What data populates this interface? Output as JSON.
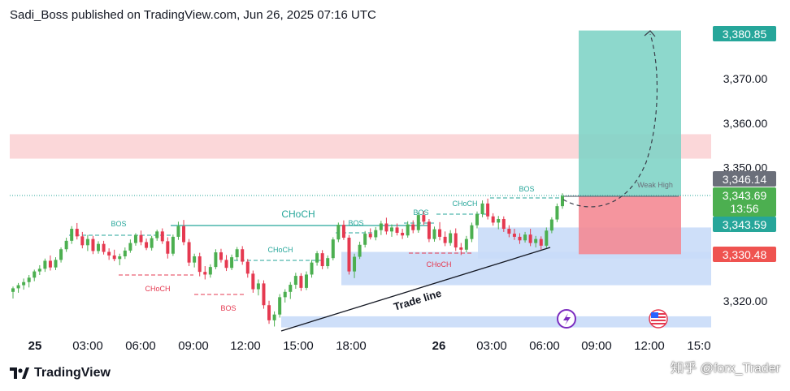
{
  "header": {
    "text": "Sadi_Boss published on TradingView.com, Jun 26, 2025 07:16 UTC"
  },
  "footer": {
    "brand": "TradingView"
  },
  "watermark": "知乎 @forx_Trader",
  "colors": {
    "up": "#26a69a",
    "down": "#ef5350",
    "up_candle": "#4caf50",
    "down_candle": "#e53950",
    "target_zone": "#81d4c6",
    "stop_zone": "#f48a94",
    "blue_zone": "#c9dcf8",
    "red_zone": "#fbd7d9",
    "label_target": "#26a69a",
    "label_stop": "#ef5350",
    "label_current": "#4caf50",
    "label_gray": "#6b6f7a"
  },
  "chart_data": {
    "type": "candlestick",
    "x_ticks": [
      "25",
      "03:00",
      "06:00",
      "09:00",
      "12:00",
      "15:00",
      "18:00",
      "26",
      "03:00",
      "06:00",
      "09:00",
      "12:00",
      "15:0"
    ],
    "y_ticks": [
      "3,370.00",
      "3,360.00",
      "3,350.00",
      "3,320.00"
    ],
    "ylim": [
      3313.5,
      3390.0
    ],
    "price_labels": [
      {
        "text": "3,380.85",
        "value": 3380.85,
        "color": "target"
      },
      {
        "text": "3,346.14",
        "value": 3346.14,
        "color": "gray"
      },
      {
        "text": "3,343.69",
        "sub": "13:56",
        "value": 3343.69,
        "color": "current"
      },
      {
        "text": "3,343.59",
        "value": 3343.59,
        "color": "target"
      },
      {
        "text": "3,330.48",
        "value": 3330.48,
        "color": "stop"
      }
    ],
    "annotations": [
      {
        "text": "BOS",
        "kind": "bull"
      },
      {
        "text": "CHoCH",
        "kind": "bear"
      },
      {
        "text": "BOS",
        "kind": "bear"
      },
      {
        "text": "CHoCH",
        "kind": "bull-large"
      },
      {
        "text": "CHoCH",
        "kind": "bull"
      },
      {
        "text": "BOS",
        "kind": "bull"
      },
      {
        "text": "BOS",
        "kind": "bull"
      },
      {
        "text": "CHoCH",
        "kind": "bull"
      },
      {
        "text": "CHoCH",
        "kind": "bear"
      },
      {
        "text": "BOS",
        "kind": "bull"
      },
      {
        "text": "Weak High",
        "kind": "gray"
      },
      {
        "text": "Trade line",
        "kind": "trend"
      }
    ],
    "position": {
      "entry": 3343.59,
      "target": 3380.85,
      "stop": 3330.48
    },
    "zones": [
      {
        "name": "supply",
        "from": 3352.0,
        "to": 3357.5
      },
      {
        "name": "demand-1",
        "from": 3329.5,
        "to": 3336.5
      },
      {
        "name": "demand-2",
        "from": 3323.5,
        "to": 3331.0
      },
      {
        "name": "demand-3",
        "from": 3314.0,
        "to": 3316.5
      }
    ],
    "candles": [
      [
        3322.0,
        3323.2,
        3320.5,
        3322.8
      ],
      [
        3322.8,
        3324.0,
        3321.8,
        3323.5
      ],
      [
        3323.5,
        3325.0,
        3322.5,
        3324.2
      ],
      [
        3324.2,
        3325.8,
        3323.0,
        3325.2
      ],
      [
        3325.2,
        3327.0,
        3324.4,
        3326.6
      ],
      [
        3326.6,
        3328.0,
        3325.8,
        3327.2
      ],
      [
        3327.2,
        3329.5,
        3326.5,
        3329.0
      ],
      [
        3329.0,
        3330.2,
        3326.8,
        3327.5
      ],
      [
        3327.5,
        3329.8,
        3326.9,
        3329.2
      ],
      [
        3329.2,
        3332.0,
        3328.6,
        3331.6
      ],
      [
        3331.6,
        3334.2,
        3331.0,
        3333.5
      ],
      [
        3333.5,
        3336.8,
        3332.8,
        3336.2
      ],
      [
        3336.2,
        3337.5,
        3333.8,
        3334.5
      ],
      [
        3334.5,
        3335.5,
        3331.8,
        3332.5
      ],
      [
        3332.5,
        3334.8,
        3331.2,
        3333.9
      ],
      [
        3333.9,
        3334.6,
        3330.5,
        3331.2
      ],
      [
        3331.2,
        3333.4,
        3330.6,
        3332.8
      ],
      [
        3332.8,
        3333.5,
        3330.4,
        3331.0
      ],
      [
        3331.0,
        3331.8,
        3329.2,
        3330.2
      ],
      [
        3330.2,
        3331.5,
        3328.9,
        3329.4
      ],
      [
        3329.4,
        3330.6,
        3328.0,
        3330.0
      ],
      [
        3330.0,
        3332.0,
        3329.4,
        3331.3
      ],
      [
        3331.3,
        3333.8,
        3330.8,
        3333.0
      ],
      [
        3333.0,
        3335.2,
        3332.4,
        3334.8
      ],
      [
        3334.8,
        3335.8,
        3332.5,
        3333.2
      ],
      [
        3333.2,
        3334.0,
        3331.4,
        3331.9
      ],
      [
        3331.9,
        3334.6,
        3331.3,
        3334.1
      ],
      [
        3334.1,
        3336.0,
        3333.5,
        3335.6
      ],
      [
        3335.6,
        3336.3,
        3332.8,
        3333.4
      ],
      [
        3333.4,
        3334.3,
        3329.5,
        3330.6
      ],
      [
        3330.6,
        3334.9,
        3330.1,
        3334.4
      ],
      [
        3334.4,
        3337.8,
        3333.7,
        3336.8
      ],
      [
        3336.8,
        3338.2,
        3332.5,
        3333.2
      ],
      [
        3333.2,
        3333.9,
        3327.8,
        3328.6
      ],
      [
        3328.6,
        3330.6,
        3327.5,
        3330.0
      ],
      [
        3330.0,
        3330.8,
        3325.5,
        3326.5
      ],
      [
        3326.5,
        3327.8,
        3324.8,
        3325.9
      ],
      [
        3325.9,
        3328.2,
        3325.2,
        3327.6
      ],
      [
        3327.6,
        3331.6,
        3327.1,
        3330.9
      ],
      [
        3330.9,
        3331.7,
        3328.6,
        3329.2
      ],
      [
        3329.2,
        3330.3,
        3326.7,
        3327.4
      ],
      [
        3327.4,
        3330.4,
        3326.9,
        3329.8
      ],
      [
        3329.8,
        3332.1,
        3329.1,
        3331.6
      ],
      [
        3331.6,
        3332.3,
        3328.1,
        3328.8
      ],
      [
        3328.8,
        3329.4,
        3325.2,
        3326.1
      ],
      [
        3326.1,
        3326.8,
        3321.8,
        3322.6
      ],
      [
        3322.6,
        3324.8,
        3321.2,
        3323.9
      ],
      [
        3323.9,
        3324.6,
        3318.2,
        3319.0
      ],
      [
        3319.0,
        3320.0,
        3314.8,
        3315.6
      ],
      [
        3315.6,
        3317.6,
        3314.2,
        3316.9
      ],
      [
        3316.9,
        3321.5,
        3316.2,
        3320.8
      ],
      [
        3320.8,
        3322.6,
        3319.6,
        3322.0
      ],
      [
        3322.0,
        3324.2,
        3320.4,
        3323.6
      ],
      [
        3323.6,
        3326.3,
        3322.7,
        3325.6
      ],
      [
        3325.6,
        3326.2,
        3322.2,
        3322.9
      ],
      [
        3322.9,
        3326.6,
        3322.4,
        3325.9
      ],
      [
        3325.9,
        3329.2,
        3325.2,
        3328.6
      ],
      [
        3328.6,
        3331.2,
        3327.9,
        3330.7
      ],
      [
        3330.7,
        3331.4,
        3327.1,
        3327.8
      ],
      [
        3327.8,
        3330.2,
        3327.2,
        3329.6
      ],
      [
        3329.6,
        3334.3,
        3329.1,
        3333.8
      ],
      [
        3333.8,
        3337.6,
        3333.2,
        3337.1
      ],
      [
        3337.1,
        3338.1,
        3333.7,
        3334.2
      ],
      [
        3334.2,
        3334.8,
        3325.9,
        3326.6
      ],
      [
        3326.6,
        3330.6,
        3325.1,
        3329.9
      ],
      [
        3329.9,
        3333.3,
        3329.4,
        3332.6
      ],
      [
        3332.6,
        3335.7,
        3332.0,
        3335.1
      ],
      [
        3335.1,
        3336.3,
        3333.8,
        3334.3
      ],
      [
        3334.3,
        3336.6,
        3333.6,
        3335.9
      ],
      [
        3335.9,
        3338.0,
        3334.8,
        3337.4
      ],
      [
        3337.4,
        3338.7,
        3334.9,
        3335.6
      ],
      [
        3335.6,
        3337.2,
        3334.4,
        3336.5
      ],
      [
        3336.5,
        3337.4,
        3334.7,
        3335.3
      ],
      [
        3335.3,
        3336.2,
        3333.9,
        3334.7
      ],
      [
        3334.7,
        3337.9,
        3334.2,
        3337.2
      ],
      [
        3337.2,
        3338.1,
        3335.2,
        3335.9
      ],
      [
        3335.9,
        3339.9,
        3335.3,
        3339.3
      ],
      [
        3339.3,
        3340.2,
        3337.1,
        3337.8
      ],
      [
        3337.8,
        3338.4,
        3333.2,
        3333.9
      ],
      [
        3333.9,
        3336.7,
        3333.3,
        3336.1
      ],
      [
        3336.1,
        3337.7,
        3333.6,
        3334.4
      ],
      [
        3334.4,
        3335.6,
        3332.3,
        3333.0
      ],
      [
        3333.0,
        3335.9,
        3332.4,
        3335.2
      ],
      [
        3335.2,
        3336.3,
        3331.2,
        3332.0
      ],
      [
        3332.0,
        3333.0,
        3330.3,
        3331.5
      ],
      [
        3331.5,
        3334.6,
        3330.9,
        3333.9
      ],
      [
        3333.9,
        3337.6,
        3333.2,
        3337.0
      ],
      [
        3337.0,
        3340.1,
        3336.3,
        3339.5
      ],
      [
        3339.5,
        3342.6,
        3338.8,
        3341.9
      ],
      [
        3341.9,
        3343.0,
        3338.3,
        3339.0
      ],
      [
        3339.0,
        3339.7,
        3336.9,
        3337.6
      ],
      [
        3337.6,
        3339.1,
        3336.1,
        3338.4
      ],
      [
        3338.4,
        3339.0,
        3335.5,
        3336.2
      ],
      [
        3336.2,
        3337.0,
        3334.3,
        3335.1
      ],
      [
        3335.1,
        3336.2,
        3333.7,
        3334.4
      ],
      [
        3334.4,
        3335.2,
        3332.8,
        3333.6
      ],
      [
        3333.6,
        3335.5,
        3333.1,
        3334.9
      ],
      [
        3334.9,
        3336.2,
        3332.3,
        3333.0
      ],
      [
        3333.0,
        3334.6,
        3332.0,
        3333.9
      ],
      [
        3333.9,
        3334.5,
        3331.5,
        3332.4
      ],
      [
        3332.4,
        3336.5,
        3331.9,
        3335.8
      ],
      [
        3335.8,
        3338.8,
        3335.2,
        3338.3
      ],
      [
        3338.3,
        3341.9,
        3337.7,
        3341.3
      ],
      [
        3341.3,
        3344.2,
        3340.7,
        3343.6
      ]
    ]
  }
}
